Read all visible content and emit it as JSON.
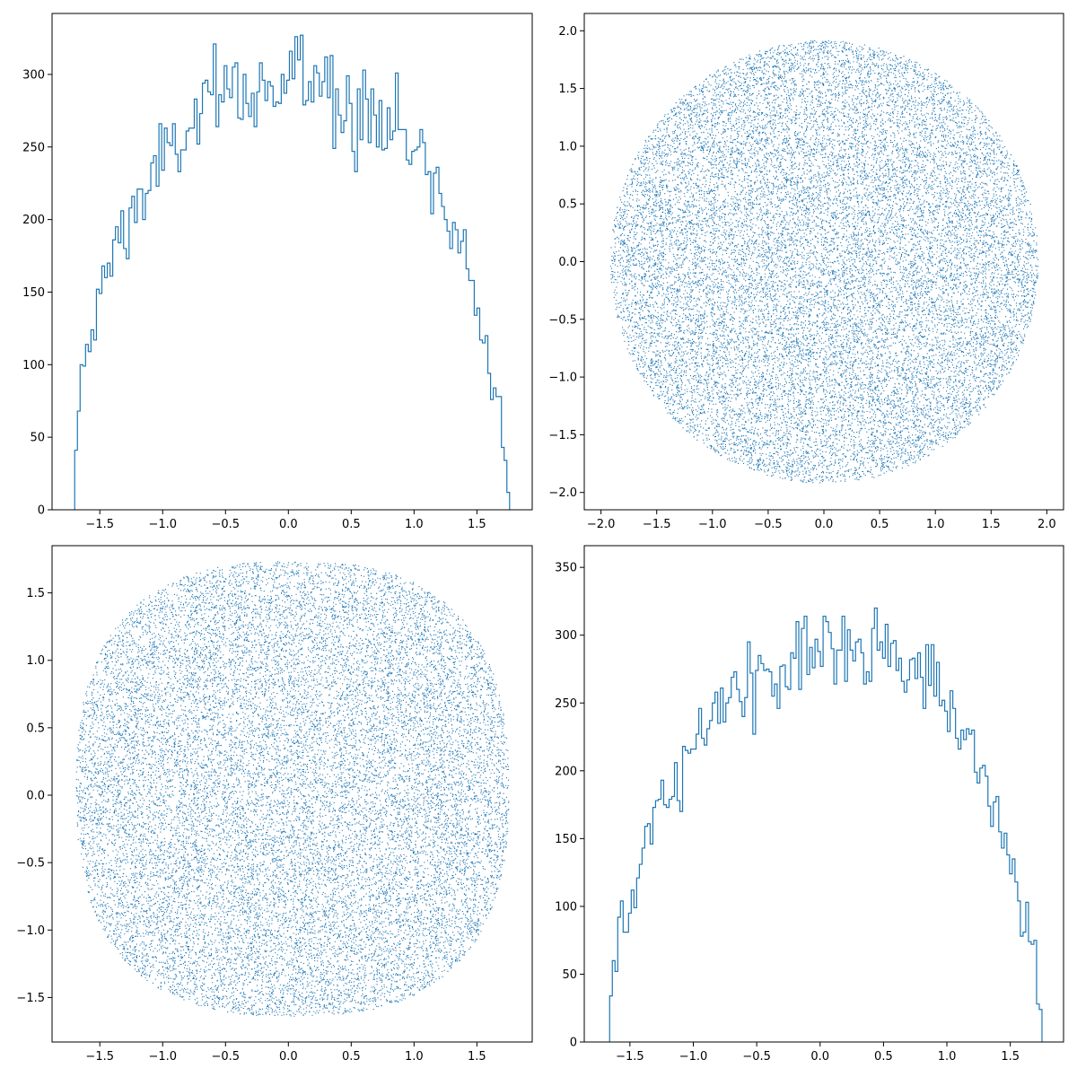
{
  "figure": {
    "background": "#ffffff",
    "series_color": "#1f77b4",
    "axes_color": "#000000"
  },
  "chart_data": [
    {
      "id": "hist-top-left",
      "type": "histogram",
      "style": "step",
      "bins": 160,
      "xlim": [
        -1.88,
        1.94
      ],
      "ylim": [
        0,
        342
      ],
      "xticks": [
        -1.5,
        -1.0,
        -0.5,
        0.0,
        0.5,
        1.0,
        1.5
      ],
      "xtick_labels": [
        "−1.5",
        "−1.0",
        "−0.5",
        "0.0",
        "0.5",
        "1.0",
        "1.5"
      ],
      "yticks": [
        0,
        50,
        100,
        150,
        200,
        250,
        300
      ],
      "ytick_labels": [
        "0",
        "50",
        "100",
        "150",
        "200",
        "250",
        "300"
      ],
      "grid": false,
      "data_range": [
        -1.7,
        1.76
      ],
      "envelope": [
        [
          -1.7,
          0
        ],
        [
          -1.69,
          45
        ],
        [
          -1.65,
          80
        ],
        [
          -1.55,
          130
        ],
        [
          -1.45,
          160
        ],
        [
          -1.35,
          190
        ],
        [
          -1.2,
          210
        ],
        [
          -1.0,
          240
        ],
        [
          -0.8,
          262
        ],
        [
          -0.6,
          278
        ],
        [
          -0.4,
          285
        ],
        [
          -0.2,
          292
        ],
        [
          0.0,
          296
        ],
        [
          0.2,
          294
        ],
        [
          0.4,
          288
        ],
        [
          0.6,
          279
        ],
        [
          0.8,
          268
        ],
        [
          1.0,
          248
        ],
        [
          1.2,
          220
        ],
        [
          1.4,
          180
        ],
        [
          1.55,
          120
        ],
        [
          1.65,
          85
        ],
        [
          1.72,
          60
        ],
        [
          1.76,
          0
        ]
      ]
    },
    {
      "id": "scatter-top-right",
      "type": "scatter",
      "shape": "disk",
      "radius": 1.92,
      "n_points": 20000,
      "xlim": [
        -2.15,
        2.15
      ],
      "ylim": [
        -2.15,
        2.15
      ],
      "xticks": [
        -2.0,
        -1.5,
        -1.0,
        -0.5,
        0.0,
        0.5,
        1.0,
        1.5,
        2.0
      ],
      "xtick_labels": [
        "−2.0",
        "−1.5",
        "−1.0",
        "−0.5",
        "0.0",
        "0.5",
        "1.0",
        "1.5",
        "2.0"
      ],
      "yticks": [
        -2.0,
        -1.5,
        -1.0,
        -0.5,
        0.0,
        0.5,
        1.0,
        1.5,
        2.0
      ],
      "ytick_labels": [
        "−2.0",
        "−1.5",
        "−1.0",
        "−0.5",
        "0.0",
        "0.5",
        "1.0",
        "1.5",
        "2.0"
      ],
      "grid": false
    },
    {
      "id": "scatter-bottom-left",
      "type": "scatter",
      "shape": "rounded-square",
      "center": [
        0.03,
        0.05
      ],
      "half_extent": 1.72,
      "superellipse_exponent": 2.6,
      "n_points": 20000,
      "xlim": [
        -1.88,
        1.94
      ],
      "ylim": [
        -1.83,
        1.85
      ],
      "xticks": [
        -1.5,
        -1.0,
        -0.5,
        0.0,
        0.5,
        1.0,
        1.5
      ],
      "xtick_labels": [
        "−1.5",
        "−1.0",
        "−0.5",
        "0.0",
        "0.5",
        "1.0",
        "1.5"
      ],
      "yticks": [
        -1.5,
        -1.0,
        -0.5,
        0.0,
        0.5,
        1.0,
        1.5
      ],
      "ytick_labels": [
        "−1.5",
        "−1.0",
        "−0.5",
        "0.0",
        "0.5",
        "1.0",
        "1.5"
      ],
      "grid": false
    },
    {
      "id": "hist-bottom-right",
      "type": "histogram",
      "style": "step",
      "bins": 160,
      "xlim": [
        -1.86,
        1.92
      ],
      "ylim": [
        0,
        366
      ],
      "xticks": [
        -1.5,
        -1.0,
        -0.5,
        0.0,
        0.5,
        1.0,
        1.5
      ],
      "xtick_labels": [
        "−1.5",
        "−1.0",
        "−0.5",
        "0.0",
        "0.5",
        "1.0",
        "1.5"
      ],
      "yticks": [
        0,
        50,
        100,
        150,
        200,
        250,
        300,
        350
      ],
      "ytick_labels": [
        "0",
        "50",
        "100",
        "150",
        "200",
        "250",
        "300",
        "350"
      ],
      "grid": false,
      "data_range": [
        -1.66,
        1.75
      ],
      "envelope": [
        [
          -1.66,
          0
        ],
        [
          -1.65,
          35
        ],
        [
          -1.6,
          70
        ],
        [
          -1.5,
          105
        ],
        [
          -1.4,
          135
        ],
        [
          -1.3,
          160
        ],
        [
          -1.2,
          185
        ],
        [
          -1.0,
          222
        ],
        [
          -0.8,
          245
        ],
        [
          -0.6,
          258
        ],
        [
          -0.4,
          268
        ],
        [
          -0.2,
          278
        ],
        [
          0.0,
          288
        ],
        [
          0.2,
          288
        ],
        [
          0.4,
          285
        ],
        [
          0.6,
          282
        ],
        [
          0.8,
          272
        ],
        [
          1.0,
          248
        ],
        [
          1.2,
          210
        ],
        [
          1.35,
          180
        ],
        [
          1.5,
          135
        ],
        [
          1.6,
          95
        ],
        [
          1.7,
          65
        ],
        [
          1.75,
          0
        ]
      ]
    }
  ]
}
